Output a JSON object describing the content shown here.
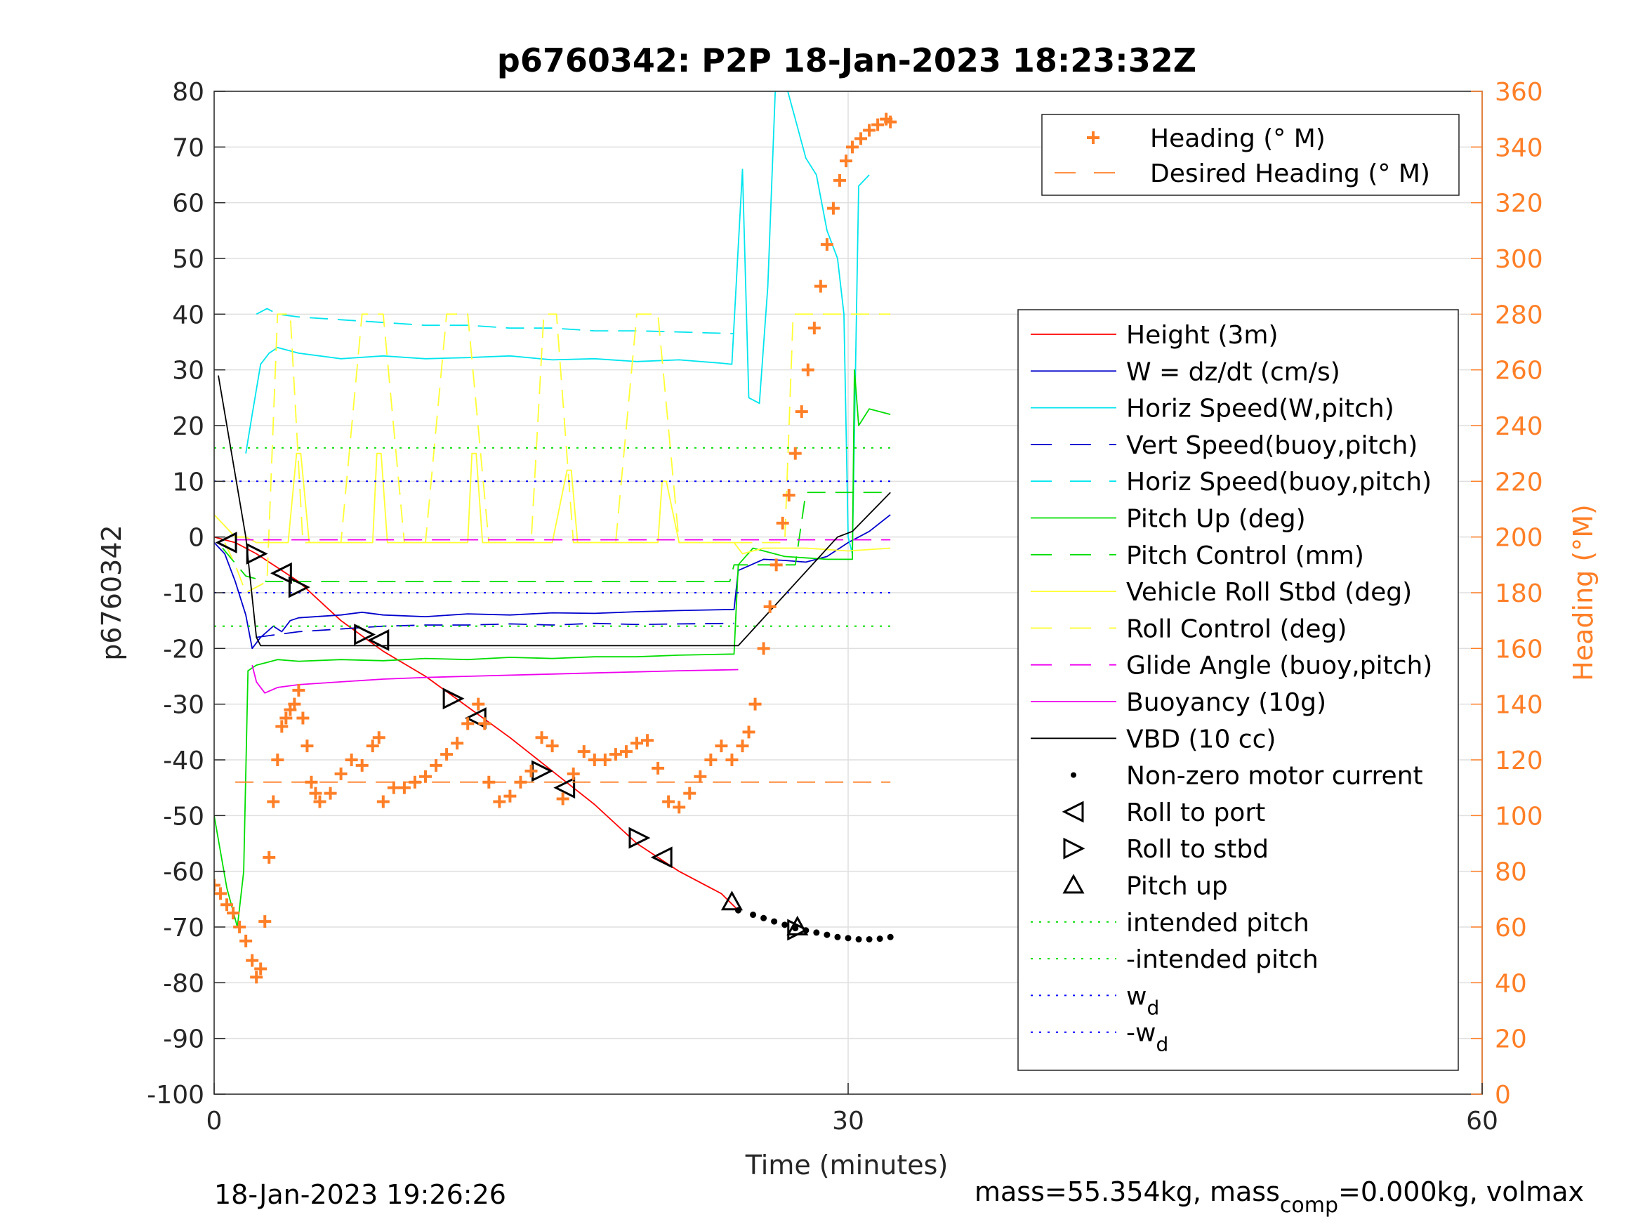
{
  "chart_data": {
    "type": "line",
    "title": "p6760342: P2P 18-Jan-2023 18:23:32Z",
    "xlabel": "Time (minutes)",
    "ylabel": "p6760342",
    "y2label": "Heading (°M)",
    "xlim": [
      0,
      60
    ],
    "ylim": [
      -100,
      80
    ],
    "y2lim": [
      0,
      360
    ],
    "x_ticks": [
      "0",
      "30",
      "60"
    ],
    "y_ticks": [
      "-100",
      "-90",
      "-80",
      "-70",
      "-60",
      "-50",
      "-40",
      "-30",
      "-20",
      "-10",
      "0",
      "10",
      "20",
      "30",
      "40",
      "50",
      "60",
      "70",
      "80"
    ],
    "y2_ticks": [
      "0",
      "20",
      "40",
      "60",
      "80",
      "100",
      "120",
      "140",
      "160",
      "180",
      "200",
      "220",
      "240",
      "260",
      "280",
      "300",
      "320",
      "340",
      "360"
    ],
    "grid": true,
    "footer_left": "18-Jan-2023 19:26:26",
    "footer_right": {
      "part1": "mass=55.354kg, mass",
      "sub": "comp",
      "part2": "=0.000kg, volmax"
    },
    "legend_top_right": [
      {
        "label": "Heading (° M)",
        "color": "#ff7f27",
        "style": "plus"
      },
      {
        "label": "Desired Heading (° M)",
        "color": "#ff7f27",
        "style": "dashed"
      }
    ],
    "legend_main": [
      {
        "label": "Height (3m)",
        "color": "#ff0000",
        "style": "solid"
      },
      {
        "label": "W = dz/dt (cm/s)",
        "color": "#0000cd",
        "style": "solid"
      },
      {
        "label": "Horiz Speed(W,pitch)",
        "color": "#00e5ee",
        "style": "solid"
      },
      {
        "label": "Vert Speed(buoy,pitch)",
        "color": "#0000cd",
        "style": "dashed"
      },
      {
        "label": "Horiz Speed(buoy,pitch)",
        "color": "#00e5ee",
        "style": "dashed"
      },
      {
        "label": "Pitch Up (deg)",
        "color": "#00dd00",
        "style": "solid"
      },
      {
        "label": "Pitch Control (mm)",
        "color": "#00dd00",
        "style": "dashed"
      },
      {
        "label": "Vehicle Roll Stbd (deg)",
        "color": "#ffff33",
        "style": "solid"
      },
      {
        "label": "Roll Control (deg)",
        "color": "#ffff33",
        "style": "dashed"
      },
      {
        "label": "Glide Angle (buoy,pitch)",
        "color": "#ee00ee",
        "style": "dashed"
      },
      {
        "label": "Buoyancy (10g)",
        "color": "#ee00ee",
        "style": "solid"
      },
      {
        "label": "VBD (10 cc)",
        "color": "#000000",
        "style": "solid"
      },
      {
        "label": "Non-zero motor current",
        "color": "#000000",
        "style": "dot"
      },
      {
        "label": "Roll to port",
        "color": "#000000",
        "style": "tri-left"
      },
      {
        "label": "Roll to stbd",
        "color": "#000000",
        "style": "tri-right"
      },
      {
        "label": "Pitch up",
        "color": "#000000",
        "style": "tri-up"
      },
      {
        "label": "intended pitch",
        "color": "#00dd00",
        "style": "dotted"
      },
      {
        "label": "-intended pitch",
        "color": "#00dd00",
        "style": "dotted"
      },
      {
        "label": "w",
        "sub": "d",
        "color": "#0000ff",
        "style": "dotted"
      },
      {
        "label": "-w",
        "sub": "d",
        "color": "#0000ff",
        "style": "dotted"
      }
    ],
    "series": [
      {
        "name": "Height (3m)",
        "color": "#ff0000",
        "style": "solid",
        "x": [
          0,
          1,
          2,
          3,
          4,
          6,
          8,
          10,
          12,
          14,
          16,
          18,
          20,
          22,
          24,
          24.8
        ],
        "y": [
          0,
          -1,
          -3,
          -5.5,
          -8,
          -15,
          -20.5,
          -25,
          -30.5,
          -36,
          -42,
          -48,
          -55,
          -60,
          -64,
          -67
        ]
      },
      {
        "name": "W = dz/dt (cm/s)",
        "color": "#0000cd",
        "style": "solid",
        "x": [
          0,
          0.5,
          1,
          1.5,
          1.8,
          2.2,
          2.8,
          3.2,
          3.6,
          4,
          6,
          7,
          8,
          10,
          12,
          14,
          16,
          18,
          20,
          22,
          24.6,
          24.8,
          26,
          27,
          28,
          29,
          30,
          31,
          32
        ],
        "y": [
          -1,
          -3,
          -8,
          -14,
          -20,
          -18,
          -16,
          -17,
          -15,
          -14.5,
          -14,
          -13.5,
          -14,
          -14.3,
          -13.8,
          -14,
          -13.6,
          -13.7,
          -13.4,
          -13.2,
          -13,
          -6,
          -4,
          -4.2,
          -4.5,
          -3.5,
          -1,
          1,
          4
        ]
      },
      {
        "name": "Horiz Speed(W,pitch)",
        "color": "#00e5ee",
        "style": "solid",
        "x": [
          1.5,
          1.8,
          2.2,
          2.6,
          3,
          3.5,
          4,
          5,
          6,
          8,
          10,
          12,
          14,
          16,
          18,
          20,
          22,
          24,
          24.5,
          25,
          25.3,
          25.8,
          26.2,
          26.6,
          27,
          27.5,
          28,
          28.5,
          29,
          29.5,
          29.8,
          30,
          30.2,
          30.5,
          31
        ],
        "y": [
          15,
          22,
          31,
          33,
          34,
          33.5,
          33,
          32.5,
          32,
          32.5,
          32,
          32.2,
          32.5,
          31.8,
          32,
          31.5,
          31.8,
          31.2,
          31,
          66,
          25,
          24,
          45,
          85,
          82,
          75,
          68,
          65,
          55,
          50,
          40,
          0,
          -3,
          63,
          65
        ]
      },
      {
        "name": "Vert Speed(buoy,pitch)",
        "color": "#0000cd",
        "style": "dashed",
        "x": [
          2,
          3,
          4,
          6,
          8,
          10,
          12,
          14,
          16,
          18,
          20,
          22,
          24.6
        ],
        "y": [
          -18,
          -17.5,
          -17,
          -16.5,
          -16,
          -15.8,
          -15.8,
          -15.6,
          -15.8,
          -15.5,
          -15.7,
          -15.6,
          -15.5
        ]
      },
      {
        "name": "Horiz Speed(buoy,pitch)",
        "color": "#00e5ee",
        "style": "dashed",
        "x": [
          2,
          2.5,
          3,
          4,
          6,
          8,
          10,
          12,
          14,
          16,
          18,
          20,
          22,
          24.6
        ],
        "y": [
          40,
          41,
          40,
          39.5,
          39,
          38.5,
          38,
          38,
          37.5,
          37.5,
          37,
          37,
          36.8,
          36.5
        ]
      },
      {
        "name": "Pitch Up (deg)",
        "color": "#00dd00",
        "style": "solid",
        "x": [
          0,
          0.6,
          1.1,
          1.4,
          1.6,
          2,
          2.5,
          3,
          4,
          6,
          8,
          10,
          12,
          14,
          16,
          18,
          20,
          22,
          24.6,
          24.8,
          25.5,
          27,
          29,
          30.2,
          30.3,
          30.5,
          31,
          32
        ],
        "y": [
          -50,
          -63,
          -70,
          -60,
          -24,
          -23,
          -22.5,
          -22,
          -22.3,
          -22,
          -22.2,
          -21.8,
          -22,
          -21.6,
          -21.8,
          -21.5,
          -21.5,
          -21.2,
          -21,
          -5,
          -2,
          -3.5,
          -4,
          -4,
          30,
          20,
          23,
          22
        ]
      },
      {
        "name": "Pitch Control (mm)",
        "color": "#00dd00",
        "style": "dashed",
        "x": [
          0.4,
          1.5,
          2.5,
          10,
          20,
          24.4,
          24.6,
          25.5,
          27.5,
          28,
          30,
          32
        ],
        "y": [
          -2,
          -7,
          -8,
          -8,
          -8,
          -8,
          -5,
          -5,
          -5,
          8,
          8,
          8
        ]
      },
      {
        "name": "Vehicle Roll Stbd (deg)",
        "color": "#ffff33",
        "style": "solid",
        "x": [
          0,
          0.5,
          1,
          1.5,
          2,
          3.5,
          3.9,
          4.1,
          4.5,
          6,
          7.5,
          7.7,
          7.9,
          8.2,
          10,
          12,
          12.2,
          12.4,
          12.7,
          14,
          16,
          16.7,
          16.9,
          17.2,
          18,
          20,
          21,
          21.2,
          21.4,
          22,
          24.6,
          25,
          26,
          28,
          30,
          32
        ],
        "y": [
          4,
          2,
          0,
          0,
          -1,
          -1,
          15,
          15,
          -1,
          -1,
          -1,
          15,
          15,
          -1,
          -1,
          -1,
          15,
          15,
          -1,
          -1,
          -1,
          12,
          12,
          -1,
          -1,
          -1,
          -1,
          10,
          10,
          -1,
          -1,
          -3,
          -2,
          -2,
          -2.5,
          -2
        ]
      },
      {
        "name": "Roll Control (deg)",
        "color": "#ffff33",
        "style": "dashed",
        "x": [
          0.5,
          1,
          1.5,
          2.5,
          3,
          3.6,
          4.2,
          5,
          6,
          7,
          8,
          9,
          10,
          11,
          12,
          13,
          15,
          15.6,
          16.2,
          17,
          19,
          20,
          21,
          22,
          24.6,
          25,
          27,
          27.4,
          28,
          29,
          30,
          32
        ],
        "y": [
          -1,
          -5,
          -10,
          -8,
          40,
          40,
          -1,
          -1,
          -1,
          40,
          40,
          -1,
          -1,
          40,
          40,
          -1,
          -1,
          40,
          40,
          -1,
          -1,
          40,
          40,
          -1,
          -1,
          -1,
          -1,
          40,
          40,
          40,
          40,
          40
        ]
      },
      {
        "name": "Glide Angle (buoy,pitch)",
        "color": "#ee00ee",
        "style": "dashed",
        "x": [
          1,
          32
        ],
        "y": [
          -0.5,
          -0.5
        ]
      },
      {
        "name": "Buoyancy (10g)",
        "color": "#ee00ee",
        "style": "solid",
        "x": [
          1.8,
          2,
          2.4,
          3,
          4,
          6,
          8,
          10,
          12,
          14,
          16,
          18,
          20,
          22,
          24.8
        ],
        "y": [
          -23,
          -26,
          -28,
          -27,
          -26.5,
          -26,
          -25.5,
          -25.2,
          -25,
          -24.8,
          -24.6,
          -24.4,
          -24.2,
          -24,
          -23.8
        ]
      },
      {
        "name": "VBD (10 cc)",
        "color": "#000000",
        "style": "solid",
        "x": [
          0.2,
          1.5,
          2,
          2.2,
          10,
          20,
          24.8,
          29.5,
          30.2,
          32
        ],
        "y": [
          29,
          0,
          -18,
          -19.5,
          -19.5,
          -19.5,
          -19.5,
          0,
          1,
          8
        ]
      },
      {
        "name": "intended pitch",
        "color": "#00dd00",
        "style": "dotted",
        "x": [
          0,
          32
        ],
        "y": [
          16,
          16
        ]
      },
      {
        "name": "-intended pitch",
        "color": "#00dd00",
        "style": "dotted",
        "x": [
          0,
          32
        ],
        "y": [
          -16,
          -16
        ]
      },
      {
        "name": "w_d",
        "color": "#0000ff",
        "style": "dotted",
        "x": [
          0,
          32
        ],
        "y": [
          10,
          10
        ]
      },
      {
        "name": "-w_d",
        "color": "#0000ff",
        "style": "dotted",
        "x": [
          0,
          32
        ],
        "y": [
          -10,
          -10
        ]
      },
      {
        "name": "Non-zero motor current",
        "color": "#000000",
        "style": "dots",
        "x": [
          24.8,
          25.5,
          26,
          26.5,
          27,
          27.5,
          28,
          28.5,
          29,
          29.5,
          30,
          30.5,
          31,
          31.5,
          32
        ],
        "y": [
          -67,
          -67.8,
          -68.4,
          -69,
          -69.6,
          -70.2,
          -70.6,
          -71,
          -71.4,
          -71.8,
          -72,
          -72.2,
          -72.2,
          -72.1,
          -71.8
        ]
      },
      {
        "name": "Roll to port",
        "color": "#000000",
        "style": "tri-left",
        "x": [
          0.6,
          3.2,
          7.8,
          12.4,
          16.6,
          21.2
        ],
        "y": [
          -1,
          -6.5,
          -18.5,
          -32.5,
          -45,
          -57.5
        ]
      },
      {
        "name": "Roll to stbd",
        "color": "#000000",
        "style": "tri-right",
        "x": [
          2,
          4,
          7.1,
          11.3,
          15.5,
          20.1,
          27.6
        ],
        "y": [
          -3,
          -9,
          -17.5,
          -29,
          -42,
          -54,
          -70.5
        ]
      },
      {
        "name": "Pitch up",
        "color": "#000000",
        "style": "tri-up",
        "x": [
          24.5,
          27.6
        ],
        "y": [
          -65.5,
          -70
        ]
      },
      {
        "name": "Desired Heading (° M)",
        "color": "#ff7f27",
        "style": "dashed",
        "axis": "right",
        "x": [
          1,
          32
        ],
        "y": [
          112,
          112
        ]
      },
      {
        "name": "Heading (° M)",
        "color": "#ff7f27",
        "style": "plus",
        "axis": "right",
        "x": [
          0,
          0.3,
          0.6,
          0.9,
          1.2,
          1.5,
          1.8,
          2,
          2.2,
          2.4,
          2.6,
          2.8,
          3,
          3.2,
          3.4,
          3.6,
          3.8,
          4,
          4.2,
          4.4,
          4.6,
          4.8,
          5,
          5.5,
          6,
          6.5,
          7,
          7.5,
          7.8,
          8,
          8.5,
          9,
          9.5,
          10,
          10.5,
          11,
          11.5,
          12,
          12.5,
          12.8,
          13,
          13.5,
          14,
          14.5,
          15,
          15.5,
          16,
          16.5,
          17,
          17.5,
          18,
          18.5,
          19,
          19.5,
          20,
          20.5,
          21,
          21.5,
          22,
          22.5,
          23,
          23.5,
          24,
          24.5,
          25,
          25.3,
          25.6,
          26,
          26.3,
          26.6,
          26.9,
          27.2,
          27.5,
          27.8,
          28.1,
          28.4,
          28.7,
          29,
          29.3,
          29.6,
          29.9,
          30.2,
          30.6,
          31,
          31.4,
          31.8,
          32
        ],
        "y": [
          75,
          72,
          68,
          65,
          60,
          55,
          48,
          42,
          45,
          62,
          85,
          105,
          120,
          132,
          135,
          138,
          140,
          145,
          135,
          125,
          112,
          108,
          105,
          108,
          115,
          120,
          118,
          125,
          128,
          105,
          110,
          110,
          112,
          114,
          118,
          122,
          126,
          133,
          140,
          133,
          112,
          105,
          107,
          112,
          116,
          128,
          125,
          106,
          115,
          123,
          120,
          120,
          122,
          123,
          126,
          127,
          117,
          105,
          103,
          108,
          114,
          120,
          125,
          120,
          125,
          130,
          140,
          160,
          175,
          190,
          205,
          215,
          230,
          245,
          260,
          275,
          290,
          305,
          318,
          328,
          335,
          340,
          343,
          346,
          348,
          350,
          349
        ]
      }
    ]
  }
}
